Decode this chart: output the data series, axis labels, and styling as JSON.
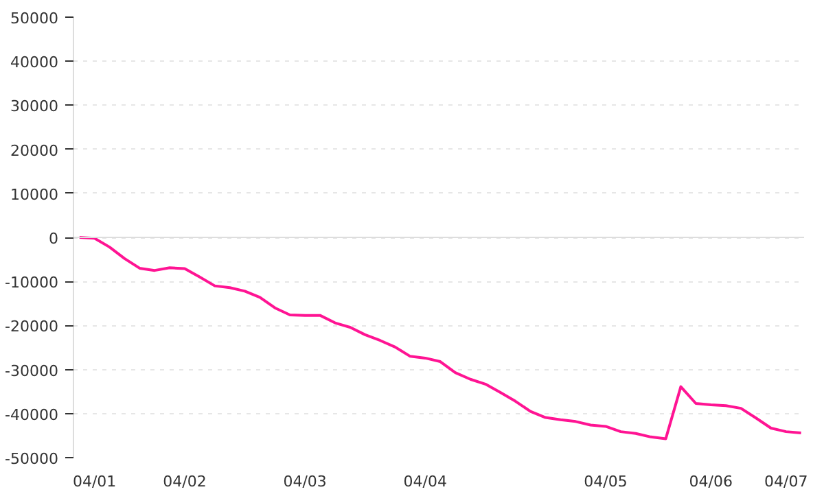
{
  "chart_data": {
    "type": "line",
    "categories": [
      null,
      "04/01",
      null,
      null,
      null,
      null,
      null,
      "04/02",
      null,
      null,
      null,
      null,
      null,
      null,
      null,
      "04/03",
      null,
      null,
      null,
      null,
      null,
      null,
      null,
      "04/04",
      null,
      null,
      null,
      null,
      null,
      null,
      null,
      null,
      null,
      null,
      null,
      "04/05",
      null,
      null,
      null,
      null,
      null,
      null,
      "04/06",
      null,
      null,
      null,
      null,
      "04/07",
      null
    ],
    "series": [
      {
        "color": "#ff1493",
        "values": [
          0,
          -200,
          -2200,
          -4800,
          -7000,
          -7500,
          -6900,
          -7100,
          -9000,
          -11000,
          -11400,
          -12200,
          -13600,
          -16000,
          -17600,
          -17700,
          -17700,
          -19400,
          -20400,
          -22100,
          -23400,
          -24900,
          -27000,
          -27400,
          -28200,
          -30700,
          -32200,
          -33300,
          -35200,
          -37200,
          -39500,
          -40900,
          -41400,
          -41800,
          -42600,
          -42900,
          -44100,
          -44500,
          -45300,
          -45700,
          -33900,
          -37700,
          -38000,
          -38200,
          -38800,
          -41000,
          -43300,
          -44100,
          -44400
        ]
      }
    ],
    "ylim": [
      -50000,
      50000
    ],
    "yticks": [
      -50000,
      -40000,
      -30000,
      -20000,
      -10000,
      0,
      10000,
      20000,
      30000,
      40000,
      50000
    ],
    "grid": "y",
    "ref_lines": [
      {
        "axis": "y",
        "value": 0,
        "color": "#dddddd"
      }
    ],
    "line_style": "solid"
  }
}
